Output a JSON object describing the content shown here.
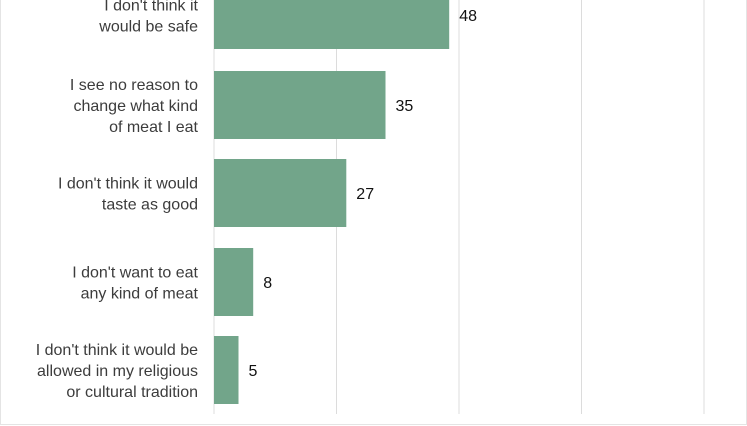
{
  "chart_data": {
    "type": "bar",
    "orientation": "horizontal",
    "categories": [
      "I don't think it would be safe",
      "I see no reason to change what kind of meat I eat",
      "I don't think it would taste as good",
      "I don't want to eat any kind of meat",
      "I don't think it would be allowed in my religious or cultural tradition"
    ],
    "category_lines": [
      [
        "I don't think it",
        "would be safe"
      ],
      [
        "I see no reason to",
        "change what kind",
        "of meat I eat"
      ],
      [
        "I don't think it would",
        "taste as good"
      ],
      [
        "I don't want to eat",
        "any kind of meat"
      ],
      [
        "I don't think it would be",
        "allowed in my religious",
        "or cultural tradition"
      ]
    ],
    "values": [
      48,
      35,
      27,
      8,
      5
    ],
    "xlim": [
      0,
      100
    ],
    "grid": true,
    "bar_color": "#72a58a",
    "data_labels": true
  }
}
